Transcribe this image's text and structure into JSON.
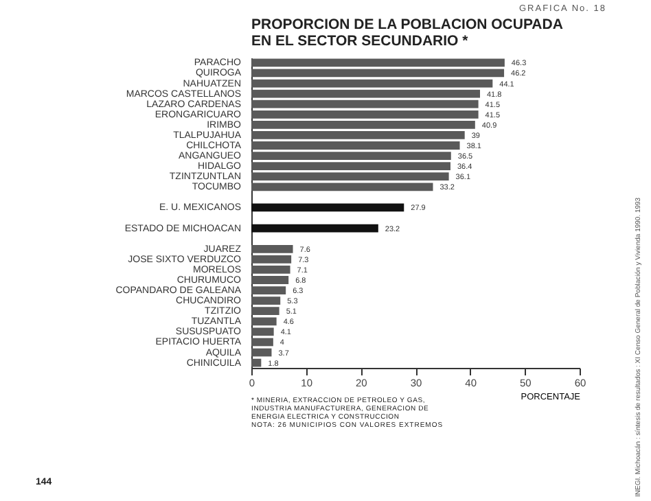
{
  "chart_data": {
    "type": "bar",
    "orientation": "horizontal",
    "title": "PROPORCION DE LA POBLACION OCUPADA EN EL SECTOR SECUNDARIO *",
    "subtitle": "GRAFICA No. 18",
    "xlabel": "PORCENTAJE",
    "categories": [
      "PARACHO",
      "QUIROGA",
      "NAHUATZEN",
      "MARCOS CASTELLANOS",
      "LAZARO CARDENAS",
      "ERONGARICUARO",
      "IRIMBO",
      "TLALPUJAHUA",
      "CHILCHOTA",
      "ANGANGUEO",
      "HIDALGO",
      "TZINTZUNTLAN",
      "TOCUMBO",
      null,
      "E. U. MEXICANOS",
      null,
      "ESTADO DE MICHOACAN",
      null,
      "JUAREZ",
      "JOSE SIXTO VERDUZCO",
      "MORELOS",
      "CHURUMUCO",
      "COPANDARO DE GALEANA",
      "CHUCANDIRO",
      "TZITZIO",
      "TUZANTLA",
      "SUSUSPUATO",
      "EPITACIO HUERTA",
      "AQUILA",
      "CHINICUILA"
    ],
    "values": [
      46.3,
      46.2,
      44.1,
      41.8,
      41.5,
      41.5,
      40.9,
      39.0,
      38.1,
      36.5,
      36.4,
      36.1,
      33.2,
      null,
      27.9,
      null,
      23.2,
      null,
      7.6,
      7.3,
      7.1,
      6.8,
      6.3,
      5.3,
      5.1,
      4.6,
      4.1,
      4.0,
      3.7,
      1.8
    ],
    "colors": [
      "#5a5a5a",
      "#5a5a5a",
      "#5a5a5a",
      "#5a5a5a",
      "#5a5a5a",
      "#5a5a5a",
      "#5a5a5a",
      "#5a5a5a",
      "#5a5a5a",
      "#5a5a5a",
      "#5a5a5a",
      "#5a5a5a",
      "#5a5a5a",
      null,
      "#111111",
      null,
      "#111111",
      null,
      "#5a5a5a",
      "#5a5a5a",
      "#5a5a5a",
      "#5a5a5a",
      "#5a5a5a",
      "#5a5a5a",
      "#5a5a5a",
      "#5a5a5a",
      "#5a5a5a",
      "#5a5a5a",
      "#5a5a5a",
      "#5a5a5a"
    ],
    "xlim": [
      0,
      60
    ],
    "xticks": [
      0,
      10,
      20,
      30,
      40,
      50,
      60
    ],
    "data_labels": true,
    "grid": false,
    "annotations": [
      "* MINERIA, EXTRACCION DE PETROLEO Y GAS, INDUSTRIA MANUFACTURERA, GENERACION DE ENERGIA ELECTRICA Y CONSTRUCCION",
      "NOTA: 26 MUNICIPIOS CON VALORES EXTREMOS",
      "144",
      "INEGI. Michoacán : síntesis de resultados : XI Censo General de Población y Vivienda 1990. 1993"
    ]
  }
}
